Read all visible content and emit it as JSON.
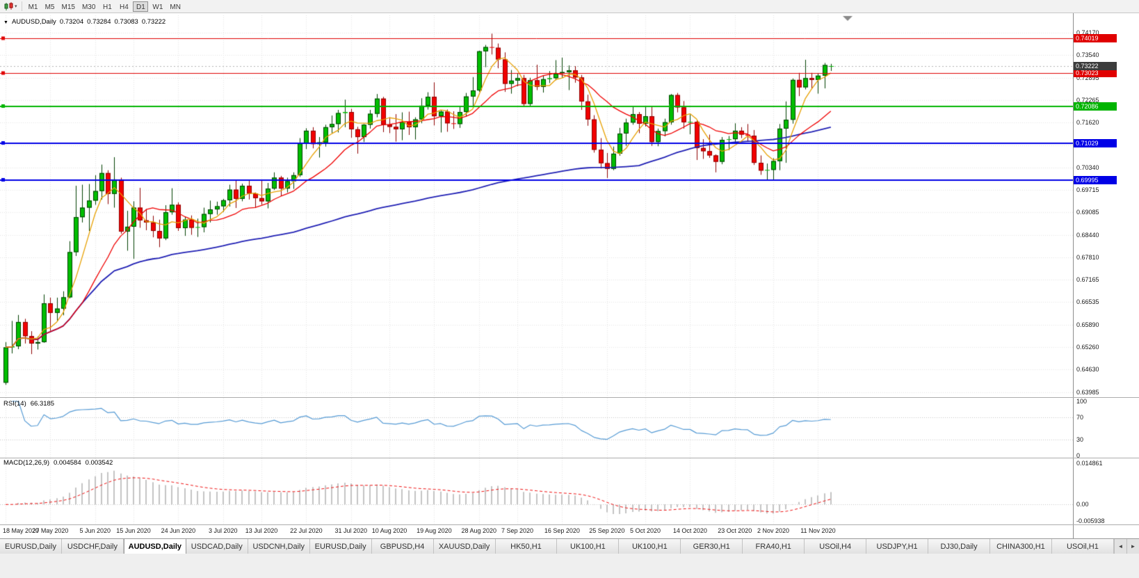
{
  "toolbar": {
    "timeframes": [
      "M1",
      "M5",
      "M15",
      "M30",
      "H1",
      "H4",
      "D1",
      "W1",
      "MN"
    ],
    "active_timeframe": "D1",
    "dropdown_caret": "▾"
  },
  "header": {
    "dropdown_icon": "▼",
    "symbol": "AUDUSD,Daily",
    "open": "0.73204",
    "high": "0.73284",
    "low": "0.73083",
    "close": "0.73222"
  },
  "chart_data": [
    {
      "type": "candlestick",
      "title": "AUDUSD,Daily",
      "ylim": [
        0.6386,
        0.7466
      ],
      "grid": true,
      "y_tick_labels": [
        "0.74170",
        "0.73540",
        "0.72895",
        "0.72265",
        "0.71620",
        "0.70975",
        "0.70340",
        "0.69715",
        "0.69085",
        "0.68440",
        "0.67810",
        "0.67165",
        "0.66535",
        "0.65890",
        "0.65260",
        "0.64630",
        "0.63985"
      ],
      "x_ticks": [
        {
          "i": 0,
          "label": "18 May 2020"
        },
        {
          "i": 7,
          "label": "27 May 2020"
        },
        {
          "i": 14,
          "label": "5 Jun 2020"
        },
        {
          "i": 20,
          "label": "15 Jun 2020"
        },
        {
          "i": 27,
          "label": "24 Jun 2020"
        },
        {
          "i": 34,
          "label": "3 Jul 2020"
        },
        {
          "i": 40,
          "label": "13 Jul 2020"
        },
        {
          "i": 47,
          "label": "22 Jul 2020"
        },
        {
          "i": 54,
          "label": "31 Jul 2020"
        },
        {
          "i": 60,
          "label": "10 Aug 2020"
        },
        {
          "i": 67,
          "label": "19 Aug 2020"
        },
        {
          "i": 74,
          "label": "28 Aug 2020"
        },
        {
          "i": 80,
          "label": "7 Sep 2020"
        },
        {
          "i": 87,
          "label": "16 Sep 2020"
        },
        {
          "i": 94,
          "label": "25 Sep 2020"
        },
        {
          "i": 100,
          "label": "5 Oct 2020"
        },
        {
          "i": 107,
          "label": "14 Oct 2020"
        },
        {
          "i": 114,
          "label": "23 Oct 2020"
        },
        {
          "i": 120,
          "label": "2 Nov 2020"
        },
        {
          "i": 127,
          "label": "11 Nov 2020"
        }
      ],
      "levels": [
        {
          "price": 0.74019,
          "label": "0.74019",
          "color": "#E00000",
          "width": 1,
          "handles": [
            "left"
          ]
        },
        {
          "price": 0.73023,
          "label": "0.73023",
          "color": "#E00000",
          "width": 1,
          "handles": [
            "left"
          ]
        },
        {
          "price": 0.72086,
          "label": "0.72086",
          "color": "#00B400",
          "width": 2,
          "handles": [
            "left",
            "center"
          ]
        },
        {
          "price": 0.71029,
          "label": "0.71029",
          "color": "#0000E6",
          "width": 2,
          "handles": [
            "left"
          ]
        },
        {
          "price": 0.69995,
          "label": "0.69995",
          "color": "#0000E6",
          "width": 2,
          "handles": [
            "left"
          ]
        }
      ],
      "current_price": {
        "value": 0.73222,
        "label": "0.73222",
        "badge_color": "#3C3C3C"
      },
      "moving_averages": [
        {
          "type": "sma",
          "period": 100,
          "color": "#1F1FB4",
          "width": 1.8
        },
        {
          "type": "sma",
          "period": 13,
          "color": "#F00000",
          "width": 1.3
        },
        {
          "type": "sma",
          "period": 5,
          "color": "#E8A000",
          "width": 1.3
        }
      ],
      "colors": {
        "bull": "#00BE00",
        "bull_border": "#004000",
        "bear": "#F20000",
        "bear_border": "#8E0000",
        "grid": "#E6E6E6",
        "bid_line": "#B4B4B4",
        "background": "#FFFFFF"
      },
      "ohlc": [
        [
          0.6425,
          0.654,
          0.6419,
          0.6525
        ],
        [
          0.6525,
          0.66,
          0.6508,
          0.6528
        ],
        [
          0.6528,
          0.6617,
          0.652,
          0.6597
        ],
        [
          0.6597,
          0.6606,
          0.6536,
          0.6557
        ],
        [
          0.6557,
          0.6571,
          0.6506,
          0.6536
        ],
        [
          0.6536,
          0.6556,
          0.6519,
          0.654
        ],
        [
          0.654,
          0.6675,
          0.6538,
          0.665
        ],
        [
          0.665,
          0.6666,
          0.6572,
          0.6623
        ],
        [
          0.6623,
          0.6666,
          0.6601,
          0.6635
        ],
        [
          0.6635,
          0.6684,
          0.6616,
          0.6667
        ],
        [
          0.6667,
          0.6826,
          0.6664,
          0.6795
        ],
        [
          0.6795,
          0.6983,
          0.6784,
          0.6894
        ],
        [
          0.6894,
          0.6986,
          0.6879,
          0.6921
        ],
        [
          0.6921,
          0.6988,
          0.6855,
          0.6941
        ],
        [
          0.6941,
          0.7013,
          0.6929,
          0.6968
        ],
        [
          0.6968,
          0.7043,
          0.6944,
          0.7019
        ],
        [
          0.7019,
          0.7027,
          0.6931,
          0.696
        ],
        [
          0.696,
          0.7064,
          0.6921,
          0.7001
        ],
        [
          0.7001,
          0.7006,
          0.6847,
          0.6853
        ],
        [
          0.6853,
          0.6912,
          0.6799,
          0.6867
        ],
        [
          0.6867,
          0.6939,
          0.6776,
          0.6921
        ],
        [
          0.6921,
          0.6977,
          0.6864,
          0.6885
        ],
        [
          0.6885,
          0.6917,
          0.6857,
          0.6879
        ],
        [
          0.6879,
          0.6898,
          0.6837,
          0.6855
        ],
        [
          0.6855,
          0.6887,
          0.6809,
          0.6834
        ],
        [
          0.6834,
          0.6928,
          0.6829,
          0.6908
        ],
        [
          0.6908,
          0.6976,
          0.6901,
          0.6929
        ],
        [
          0.6929,
          0.6936,
          0.6855,
          0.6863
        ],
        [
          0.6863,
          0.6895,
          0.6841,
          0.6887
        ],
        [
          0.6887,
          0.6899,
          0.6844,
          0.6864
        ],
        [
          0.6864,
          0.689,
          0.6838,
          0.6866
        ],
        [
          0.6866,
          0.6921,
          0.6851,
          0.6903
        ],
        [
          0.6903,
          0.6941,
          0.6879,
          0.6916
        ],
        [
          0.6916,
          0.6938,
          0.6901,
          0.6925
        ],
        [
          0.6925,
          0.6946,
          0.6909,
          0.6942
        ],
        [
          0.6942,
          0.6986,
          0.6924,
          0.6972
        ],
        [
          0.6972,
          0.6998,
          0.692,
          0.6946
        ],
        [
          0.6946,
          0.6989,
          0.6939,
          0.6983
        ],
        [
          0.6983,
          0.6998,
          0.6944,
          0.6961
        ],
        [
          0.6961,
          0.6964,
          0.692,
          0.6948
        ],
        [
          0.6948,
          0.7001,
          0.6929,
          0.6939
        ],
        [
          0.6939,
          0.6991,
          0.6919,
          0.6975
        ],
        [
          0.6975,
          0.7021,
          0.6971,
          0.7006
        ],
        [
          0.7006,
          0.7011,
          0.6954,
          0.6975
        ],
        [
          0.6975,
          0.7006,
          0.6964,
          0.6996
        ],
        [
          0.6996,
          0.7021,
          0.6974,
          0.7013
        ],
        [
          0.7013,
          0.7118,
          0.7008,
          0.7103
        ],
        [
          0.7103,
          0.7146,
          0.7087,
          0.7139
        ],
        [
          0.7139,
          0.7149,
          0.7089,
          0.7101
        ],
        [
          0.7101,
          0.7121,
          0.7063,
          0.7106
        ],
        [
          0.7106,
          0.7156,
          0.7094,
          0.7149
        ],
        [
          0.7149,
          0.7182,
          0.7132,
          0.7158
        ],
        [
          0.7158,
          0.7198,
          0.7134,
          0.7189
        ],
        [
          0.7189,
          0.7227,
          0.7149,
          0.7192
        ],
        [
          0.7192,
          0.7201,
          0.7119,
          0.7143
        ],
        [
          0.7143,
          0.715,
          0.7074,
          0.7121
        ],
        [
          0.7121,
          0.7158,
          0.7107,
          0.7156
        ],
        [
          0.7156,
          0.7198,
          0.7145,
          0.7187
        ],
        [
          0.7187,
          0.7243,
          0.7177,
          0.723
        ],
        [
          0.723,
          0.7235,
          0.7135,
          0.7156
        ],
        [
          0.7156,
          0.7177,
          0.7132,
          0.715
        ],
        [
          0.715,
          0.7186,
          0.7108,
          0.7143
        ],
        [
          0.7143,
          0.7191,
          0.7112,
          0.7164
        ],
        [
          0.7164,
          0.7193,
          0.7127,
          0.7149
        ],
        [
          0.7149,
          0.7177,
          0.7114,
          0.7171
        ],
        [
          0.7171,
          0.7231,
          0.716,
          0.721
        ],
        [
          0.721,
          0.7248,
          0.7199,
          0.7235
        ],
        [
          0.7235,
          0.7276,
          0.7154,
          0.718
        ],
        [
          0.718,
          0.7198,
          0.7134,
          0.7193
        ],
        [
          0.7193,
          0.7199,
          0.7136,
          0.716
        ],
        [
          0.716,
          0.7194,
          0.7144,
          0.7158
        ],
        [
          0.7158,
          0.7208,
          0.7147,
          0.7192
        ],
        [
          0.7192,
          0.7246,
          0.7179,
          0.7236
        ],
        [
          0.7236,
          0.7291,
          0.7209,
          0.7253
        ],
        [
          0.7253,
          0.7366,
          0.7249,
          0.7364
        ],
        [
          0.7364,
          0.7382,
          0.7319,
          0.7376
        ],
        [
          0.7376,
          0.7414,
          0.7355,
          0.7374
        ],
        [
          0.7374,
          0.7386,
          0.7316,
          0.7341
        ],
        [
          0.7341,
          0.7361,
          0.7249,
          0.7272
        ],
        [
          0.7272,
          0.7311,
          0.7244,
          0.7281
        ],
        [
          0.7281,
          0.7301,
          0.7265,
          0.7288
        ],
        [
          0.7288,
          0.7297,
          0.7209,
          0.7215
        ],
        [
          0.7215,
          0.7289,
          0.7206,
          0.7282
        ],
        [
          0.7282,
          0.7326,
          0.7254,
          0.7263
        ],
        [
          0.7263,
          0.7296,
          0.7247,
          0.7285
        ],
        [
          0.7285,
          0.7308,
          0.7274,
          0.7288
        ],
        [
          0.7288,
          0.7339,
          0.7282,
          0.7301
        ],
        [
          0.7301,
          0.7346,
          0.7289,
          0.7305
        ],
        [
          0.7305,
          0.7324,
          0.7254,
          0.731
        ],
        [
          0.731,
          0.7322,
          0.7275,
          0.729
        ],
        [
          0.729,
          0.7297,
          0.7198,
          0.7222
        ],
        [
          0.7222,
          0.7241,
          0.7153,
          0.7171
        ],
        [
          0.7171,
          0.7183,
          0.7077,
          0.7085
        ],
        [
          0.7085,
          0.7118,
          0.7032,
          0.7047
        ],
        [
          0.7047,
          0.7076,
          0.7005,
          0.7031
        ],
        [
          0.7031,
          0.7094,
          0.7027,
          0.7074
        ],
        [
          0.7074,
          0.7147,
          0.7068,
          0.7131
        ],
        [
          0.7131,
          0.7173,
          0.7096,
          0.7162
        ],
        [
          0.7162,
          0.7209,
          0.7156,
          0.7186
        ],
        [
          0.7186,
          0.7192,
          0.7132,
          0.7159
        ],
        [
          0.7159,
          0.7209,
          0.7151,
          0.718
        ],
        [
          0.718,
          0.7208,
          0.7096,
          0.7107
        ],
        [
          0.7107,
          0.7145,
          0.7095,
          0.7138
        ],
        [
          0.7138,
          0.7173,
          0.7123,
          0.7163
        ],
        [
          0.7163,
          0.7243,
          0.7156,
          0.724
        ],
        [
          0.724,
          0.7246,
          0.7191,
          0.7205
        ],
        [
          0.7205,
          0.7223,
          0.7145,
          0.7163
        ],
        [
          0.7163,
          0.7185,
          0.7129,
          0.7164
        ],
        [
          0.7164,
          0.717,
          0.7056,
          0.709
        ],
        [
          0.709,
          0.7115,
          0.7059,
          0.7081
        ],
        [
          0.7081,
          0.7128,
          0.7062,
          0.7069
        ],
        [
          0.7069,
          0.7072,
          0.7021,
          0.7051
        ],
        [
          0.7051,
          0.7121,
          0.7044,
          0.7113
        ],
        [
          0.7113,
          0.7124,
          0.7084,
          0.7115
        ],
        [
          0.7115,
          0.716,
          0.7102,
          0.7139
        ],
        [
          0.7139,
          0.7149,
          0.7118,
          0.7128
        ],
        [
          0.7128,
          0.7158,
          0.7107,
          0.7125
        ],
        [
          0.7125,
          0.7141,
          0.7042,
          0.7048
        ],
        [
          0.7048,
          0.7069,
          0.7014,
          0.7026
        ],
        [
          0.7026,
          0.7046,
          0.6999,
          0.7028
        ],
        [
          0.7028,
          0.7061,
          0.7001,
          0.7053
        ],
        [
          0.7053,
          0.7158,
          0.7027,
          0.7145
        ],
        [
          0.7145,
          0.7222,
          0.7048,
          0.717
        ],
        [
          0.717,
          0.7287,
          0.7159,
          0.7283
        ],
        [
          0.7283,
          0.7303,
          0.7237,
          0.7262
        ],
        [
          0.7262,
          0.734,
          0.7256,
          0.7288
        ],
        [
          0.7288,
          0.7303,
          0.7257,
          0.7283
        ],
        [
          0.7283,
          0.7302,
          0.7244,
          0.7295
        ],
        [
          0.7295,
          0.7331,
          0.7259,
          0.7325
        ],
        [
          0.73204,
          0.73284,
          0.73083,
          0.73222
        ]
      ]
    },
    {
      "type": "line",
      "indicator": "RSI",
      "label": "RSI(14)",
      "current_value_label": "66.3185",
      "period": 14,
      "range": [
        0,
        100
      ],
      "level_lines": [
        70,
        30
      ],
      "axis_labels": [
        "100",
        "70",
        "30",
        "0"
      ],
      "line_color": "#569BD5"
    },
    {
      "type": "macd",
      "indicator": "MACD",
      "label": "MACD(12,26,9)",
      "main_value_label": "0.004584",
      "signal_value_label": "0.003542",
      "fast_period": 12,
      "slow_period": 26,
      "signal_period": 9,
      "range": [
        -0.005938,
        0.014861
      ],
      "axis_labels": [
        "0.014861",
        "0.00",
        "-0.005938"
      ],
      "histogram_color": "#C4C4C4",
      "signal_color": "#F01010"
    }
  ],
  "tabs": {
    "items": [
      "EURUSD,Daily",
      "USDCHF,Daily",
      "AUDUSD,Daily",
      "USDCAD,Daily",
      "USDCNH,Daily",
      "EURUSD,Daily",
      "GBPUSD,H4",
      "XAUUSD,Daily",
      "HK50,H1",
      "UK100,H1",
      "UK100,H1",
      "GER30,H1",
      "FRA40,H1",
      "USOil,H4",
      "USDJPY,H1",
      "DJ30,Daily",
      "CHINA300,H1",
      "USOil,H1"
    ],
    "active_index": 2,
    "scroll_left_icon": "◄",
    "scroll_right_icon": "►"
  }
}
